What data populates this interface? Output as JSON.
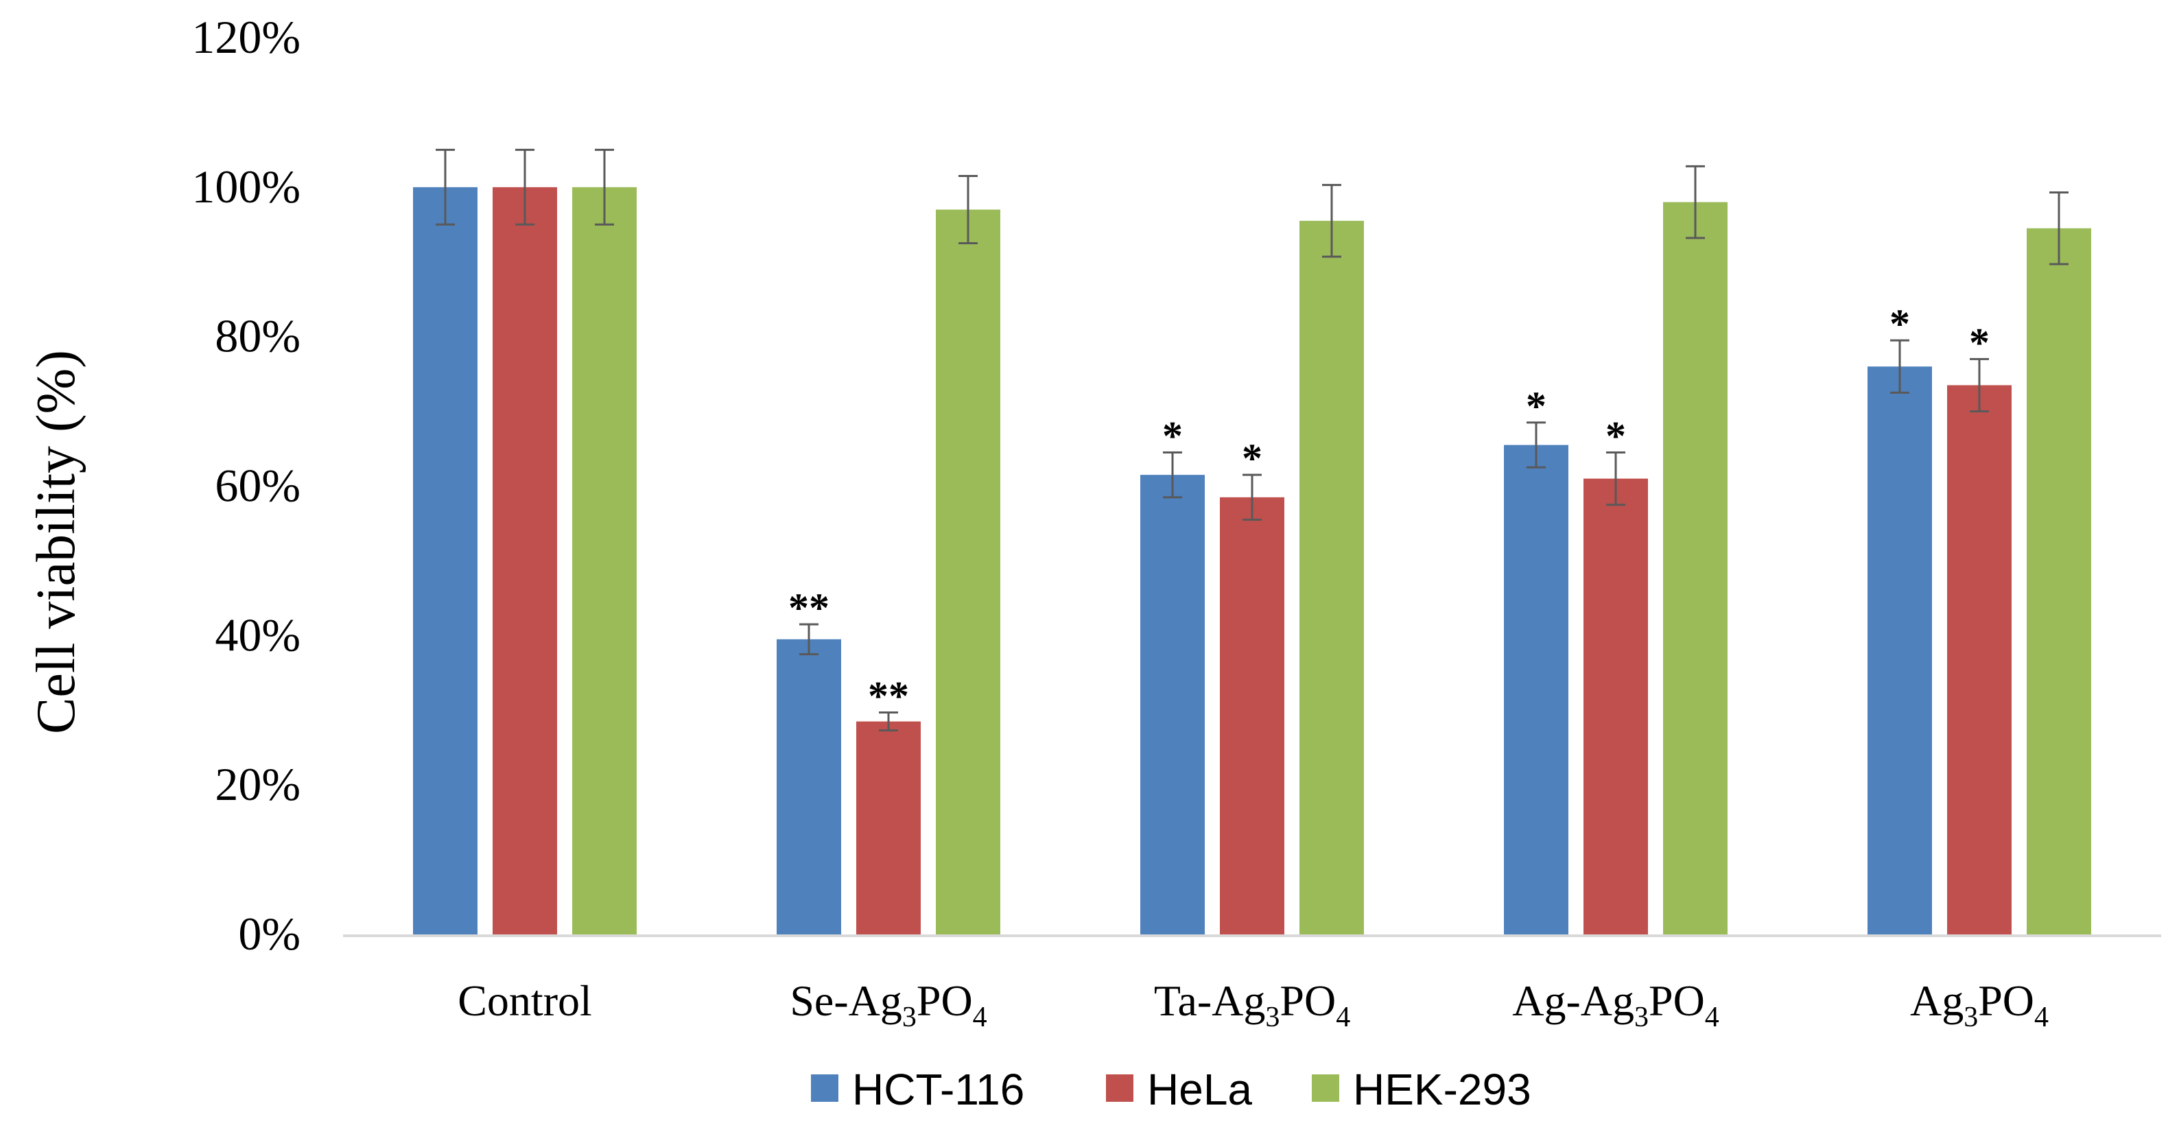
{
  "chart_data": {
    "type": "bar",
    "title": "",
    "xlabel": "",
    "ylabel": "Cell viability (%)",
    "ylim": [
      0,
      120
    ],
    "yticks": [
      "0%",
      "20%",
      "40%",
      "60%",
      "80%",
      "100%",
      "120%"
    ],
    "ytick_values": [
      0,
      20,
      40,
      60,
      80,
      100,
      120
    ],
    "categories": [
      {
        "base": "Control",
        "parts": [
          [
            "Control",
            ""
          ]
        ]
      },
      {
        "base": "Se-Ag3PO4",
        "parts": [
          [
            "Se-Ag",
            ""
          ],
          [
            "3",
            "sub"
          ],
          [
            "PO",
            ""
          ],
          [
            "4",
            "sub"
          ]
        ]
      },
      {
        "base": "Ta-Ag3PO4",
        "parts": [
          [
            "Ta-Ag",
            ""
          ],
          [
            "3",
            "sub"
          ],
          [
            "PO",
            ""
          ],
          [
            "4",
            "sub"
          ]
        ]
      },
      {
        "base": "Ag-Ag3PO4",
        "parts": [
          [
            "Ag-Ag",
            ""
          ],
          [
            "3",
            "sub"
          ],
          [
            "PO",
            ""
          ],
          [
            "4",
            "sub"
          ]
        ]
      },
      {
        "base": "Ag3PO4",
        "parts": [
          [
            "Ag",
            ""
          ],
          [
            "3",
            "sub"
          ],
          [
            "PO",
            ""
          ],
          [
            "4",
            "sub"
          ]
        ]
      }
    ],
    "series": [
      {
        "name": "HCT-116",
        "color": "#4F81BD",
        "values": [
          100,
          39.5,
          61.5,
          65.5,
          76
        ],
        "errors": [
          5,
          2,
          3,
          3,
          3.5
        ],
        "significance": [
          "",
          "**",
          "*",
          "*",
          "*"
        ]
      },
      {
        "name": "HeLa",
        "color": "#C0504D",
        "values": [
          100,
          28.5,
          58.5,
          61,
          73.5
        ],
        "errors": [
          5,
          1.2,
          3,
          3.5,
          3.5
        ],
        "significance": [
          "",
          "**",
          "*",
          "*",
          "*"
        ]
      },
      {
        "name": "HEK-293",
        "color": "#9BBB59",
        "values": [
          100,
          97,
          95.5,
          98,
          94.5
        ],
        "errors": [
          5,
          4.5,
          4.8,
          4.8,
          4.8
        ],
        "significance": [
          "",
          "",
          "",
          "",
          ""
        ]
      }
    ],
    "legend_position": "bottom-center",
    "grid": false
  }
}
